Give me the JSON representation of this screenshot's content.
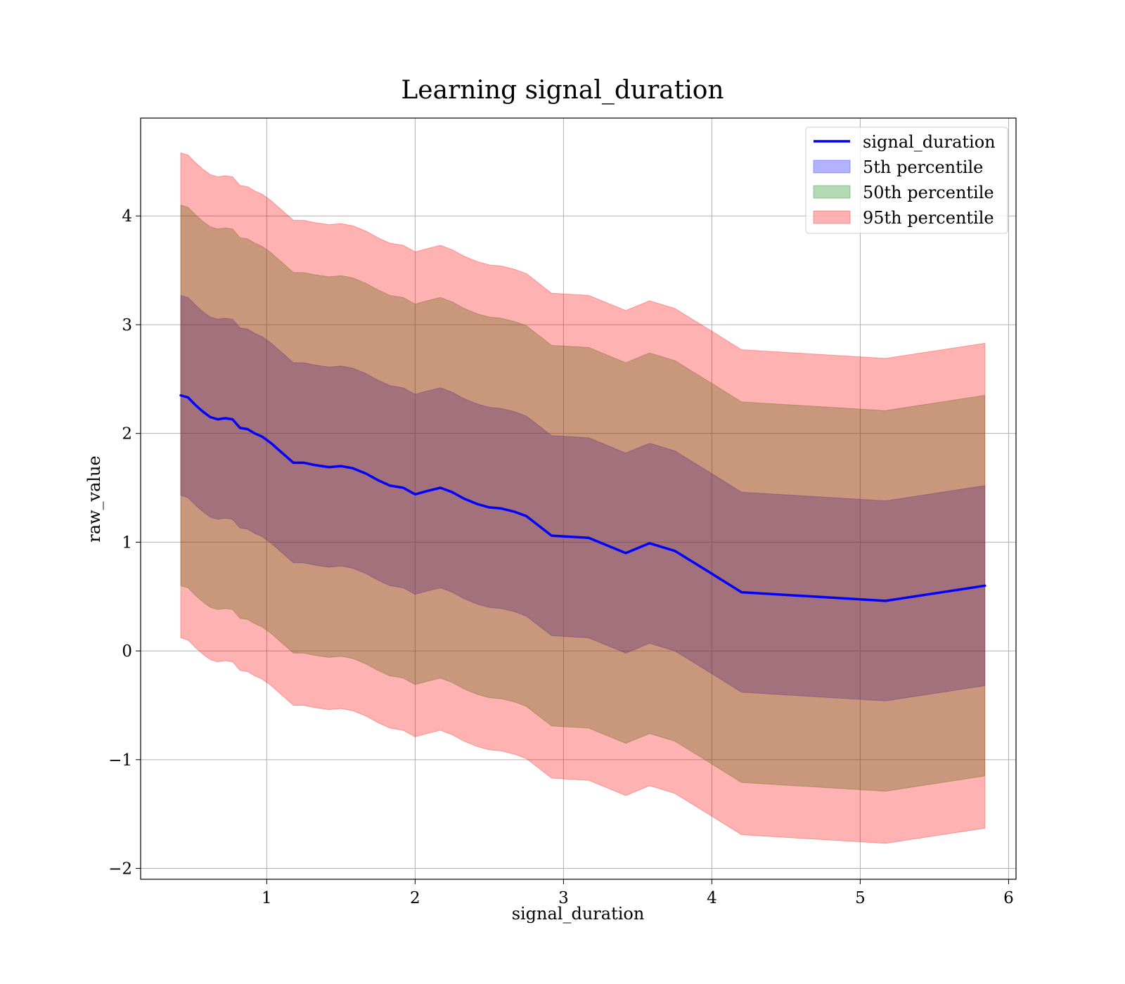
{
  "chart_data": {
    "type": "area",
    "title": "Learning signal_duration",
    "xlabel": "signal_duration",
    "ylabel": "raw_value",
    "xlim": [
      0.15,
      6.05
    ],
    "ylim": [
      -2.1,
      4.9
    ],
    "xticks": [
      1,
      2,
      3,
      4,
      5,
      6
    ],
    "yticks": [
      -2,
      -1,
      0,
      1,
      2,
      3,
      4
    ],
    "grid": true,
    "legend_position": "top-right",
    "x": [
      0.42,
      0.47,
      0.52,
      0.57,
      0.62,
      0.67,
      0.72,
      0.77,
      0.82,
      0.87,
      0.92,
      0.97,
      1.03,
      1.08,
      1.13,
      1.18,
      1.25,
      1.32,
      1.42,
      1.5,
      1.58,
      1.67,
      1.75,
      1.83,
      1.92,
      2.0,
      2.08,
      2.17,
      2.25,
      2.33,
      2.42,
      2.5,
      2.58,
      2.67,
      2.75,
      2.92,
      3.17,
      3.42,
      3.58,
      3.75,
      4.0,
      4.2,
      5.17,
      5.84
    ],
    "series": [
      {
        "name": "signal_duration",
        "values": [
          2.35,
          2.33,
          2.26,
          2.2,
          2.15,
          2.13,
          2.14,
          2.13,
          2.05,
          2.04,
          2.0,
          1.97,
          1.91,
          1.85,
          1.79,
          1.73,
          1.73,
          1.71,
          1.69,
          1.7,
          1.68,
          1.63,
          1.57,
          1.52,
          1.5,
          1.44,
          1.47,
          1.5,
          1.46,
          1.4,
          1.35,
          1.32,
          1.31,
          1.28,
          1.24,
          1.06,
          1.04,
          0.9,
          0.99,
          0.92,
          0.71,
          0.54,
          0.46,
          0.6
        ]
      }
    ],
    "bands": [
      {
        "name": "5th percentile",
        "color": "#0000ff",
        "opacity": 0.3,
        "offset": 0.92
      },
      {
        "name": "50th percentile",
        "color": "#008000",
        "opacity": 0.3,
        "offset": 1.75
      },
      {
        "name": "95th percentile",
        "color": "#ff0000",
        "opacity": 0.3,
        "offset": 2.23
      }
    ],
    "line_color": "#0000ff"
  }
}
